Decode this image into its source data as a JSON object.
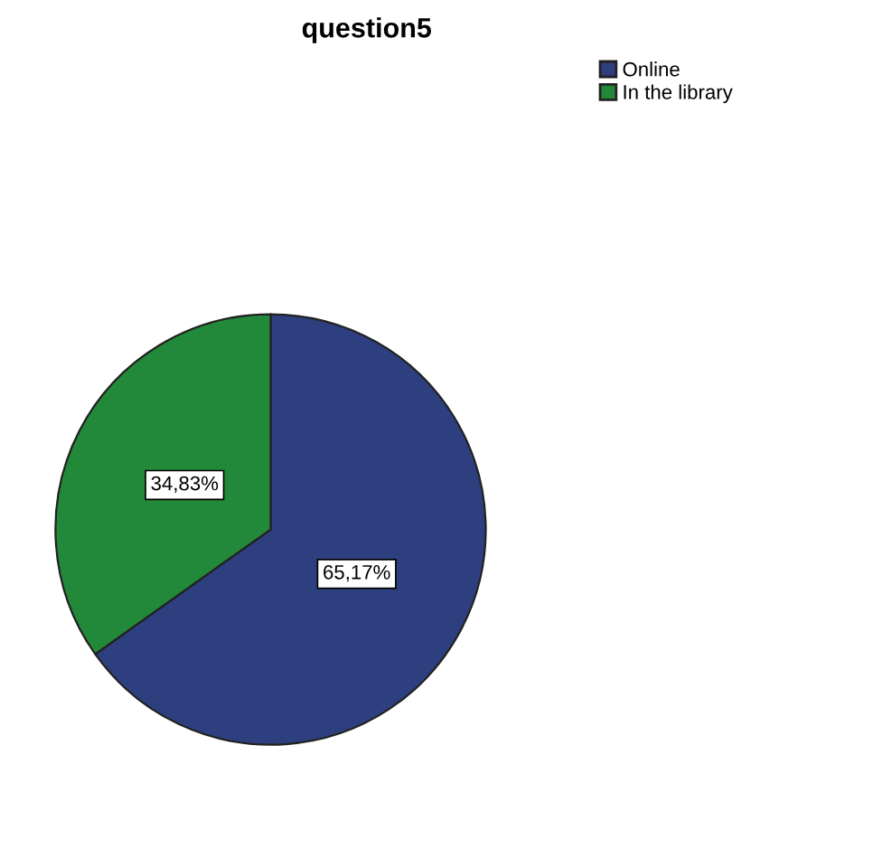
{
  "chart_data": {
    "type": "pie",
    "title": "question5",
    "categories": [
      "Online",
      "In the library"
    ],
    "values": [
      65.17,
      34.83
    ],
    "colors": [
      "#2e3f7f",
      "#23893a"
    ],
    "value_labels": [
      "65,17%",
      "34,83%"
    ],
    "legend": "top right"
  }
}
